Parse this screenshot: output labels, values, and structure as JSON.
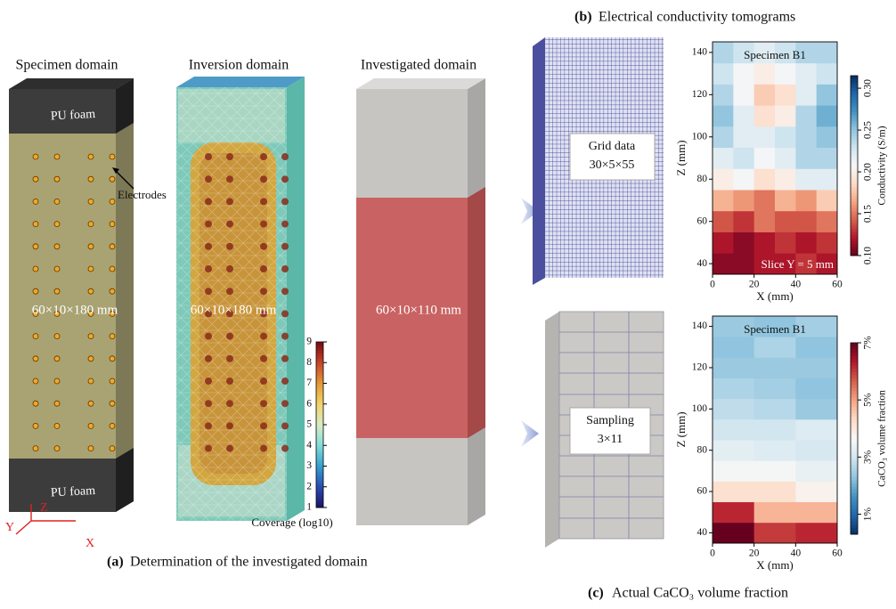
{
  "panel_a": {
    "label": "(a)",
    "caption": "Determination of the investigated domain",
    "specimen": {
      "title": "Specimen domain",
      "top_label": "PU foam",
      "bottom_label": "PU foam",
      "electrodes_label": "Electrodes",
      "size_label": "60×10×180 mm"
    },
    "inversion": {
      "title": "Inversion domain",
      "size_label": "60×10×180 mm",
      "colorbar": {
        "label": "Coverage (log10)",
        "clim": [
          1,
          9
        ],
        "ticks": [
          1,
          2,
          3,
          4,
          5,
          6,
          7,
          8,
          9
        ],
        "colormap": "coverage"
      }
    },
    "investigated": {
      "title": "Investigated domain",
      "size_label": "60×10×110 mm"
    },
    "axes_triad": {
      "x": "X",
      "y": "Y",
      "z": "Z"
    }
  },
  "panel_b": {
    "label": "(b)",
    "caption": "Electrical conductivity tomograms",
    "box_label": [
      "Grid data",
      "30×5×55"
    ],
    "heatmap": {
      "title": "Specimen B1",
      "annotation": "Slice Y = 5 mm",
      "xlabel": "X (mm)",
      "ylabel": "Z (mm)",
      "xlim": [
        0,
        60
      ],
      "ylim": [
        35,
        145
      ],
      "xticks": [
        0,
        20,
        40,
        60
      ],
      "yticks": [
        40,
        60,
        80,
        100,
        120,
        140
      ],
      "x_edges": [
        0,
        10,
        20,
        30,
        40,
        50,
        60
      ],
      "z_edges": [
        35,
        45,
        55,
        65,
        75,
        85,
        95,
        105,
        115,
        125,
        135,
        145
      ],
      "values": [
        [
          0.11,
          0.11,
          0.12,
          0.12,
          0.13,
          0.12
        ],
        [
          0.12,
          0.11,
          0.12,
          0.13,
          0.12,
          0.13
        ],
        [
          0.14,
          0.13,
          0.15,
          0.14,
          0.14,
          0.15
        ],
        [
          0.17,
          0.16,
          0.15,
          0.17,
          0.16,
          0.18
        ],
        [
          0.2,
          0.21,
          0.19,
          0.2,
          0.22,
          0.22
        ],
        [
          0.22,
          0.23,
          0.21,
          0.22,
          0.24,
          0.24
        ],
        [
          0.24,
          0.22,
          0.22,
          0.23,
          0.24,
          0.25
        ],
        [
          0.25,
          0.22,
          0.19,
          0.2,
          0.24,
          0.26
        ],
        [
          0.24,
          0.21,
          0.18,
          0.19,
          0.22,
          0.25
        ],
        [
          0.23,
          0.21,
          0.2,
          0.21,
          0.22,
          0.23
        ],
        [
          0.24,
          0.23,
          0.22,
          0.23,
          0.24,
          0.24
        ]
      ],
      "colorbar": {
        "label": "Conductivity (S/m)",
        "clim": [
          0.1,
          0.315
        ],
        "colormap": "RdBu",
        "ticks": [
          {
            "value": 0.1,
            "label": "0.10"
          },
          0.15,
          {
            "value": 0.2,
            "label": "0.20"
          },
          0.25,
          {
            "value": 0.3,
            "label": "0.30"
          }
        ]
      }
    }
  },
  "panel_c": {
    "label": "(c)",
    "caption": "Actual CaCO₃ volume fraction",
    "box_label": [
      "Sampling",
      "3×11"
    ],
    "heatmap": {
      "title": "Specimen B1",
      "xlabel": "X (mm)",
      "ylabel": "Z (mm)",
      "xlim": [
        0,
        60
      ],
      "ylim": [
        35,
        145
      ],
      "xticks": [
        0,
        20,
        40,
        60
      ],
      "yticks": [
        40,
        60,
        80,
        100,
        120,
        140
      ],
      "x_edges": [
        0,
        20,
        40,
        60
      ],
      "z_edges": [
        35,
        45,
        55,
        65,
        75,
        85,
        95,
        105,
        115,
        125,
        135,
        145
      ],
      "values": [
        [
          7,
          6,
          6.2
        ],
        [
          6.2,
          4.8,
          4.8
        ],
        [
          4.2,
          4.2,
          3.8
        ],
        [
          3.6,
          3.6,
          3.4
        ],
        [
          3.3,
          3.2,
          3.1
        ],
        [
          3,
          3,
          3.2
        ],
        [
          2.8,
          2.7,
          2.4
        ],
        [
          2.6,
          2.5,
          2.3
        ],
        [
          2.4,
          2.4,
          2.4
        ],
        [
          2.3,
          2.6,
          2.3
        ],
        [
          2.4,
          2.3,
          2.5
        ]
      ],
      "colorbar": {
        "label": "CaCO₃ volume fraction",
        "clim": [
          0.3,
          7
        ],
        "colormap": "RdBu_r",
        "ticks": [
          {
            "value": 1,
            "label": "1%"
          },
          {
            "value": 3,
            "label": "3%"
          },
          {
            "value": 5,
            "label": "5%"
          },
          {
            "value": 7,
            "label": "7%"
          }
        ]
      }
    }
  }
}
